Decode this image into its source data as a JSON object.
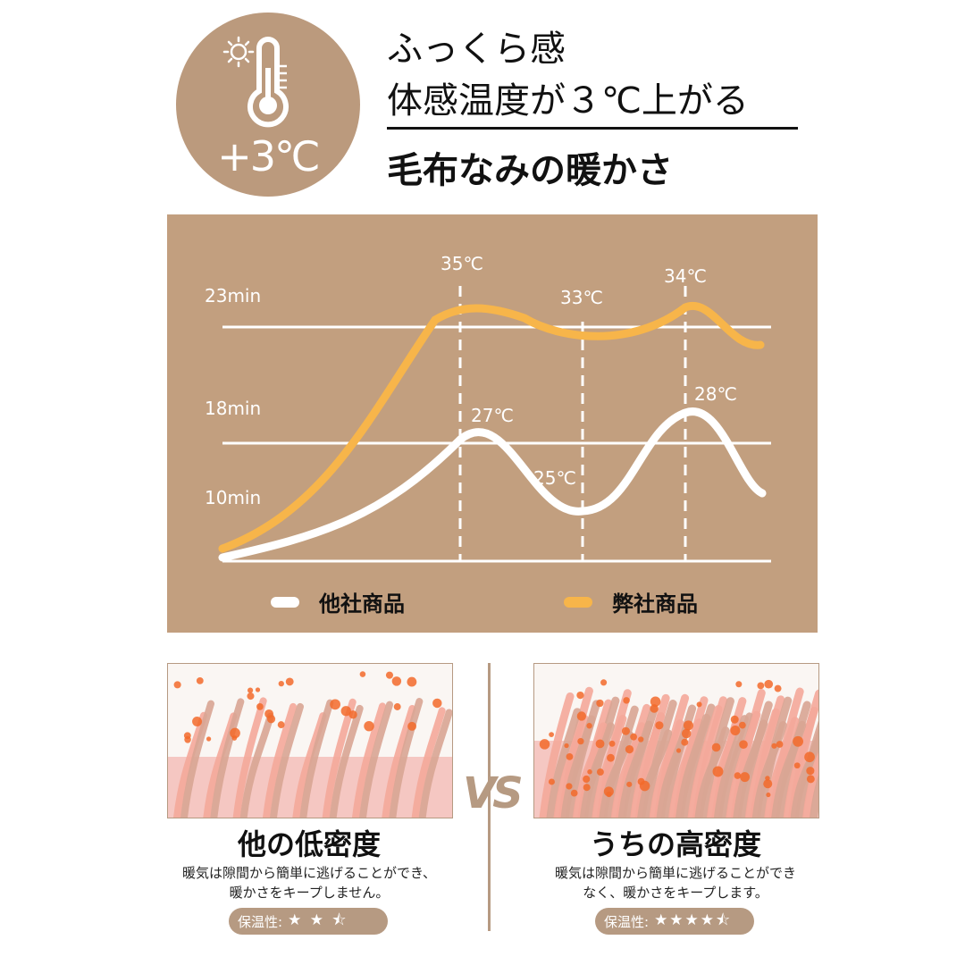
{
  "badge": {
    "text": "+3℃",
    "icon": "thermometer-sun-icon"
  },
  "header": {
    "line1": "ふっくら感",
    "line2": "体感温度が３℃上がる",
    "line3": "毛布なみの暖かさ"
  },
  "chart_data": {
    "type": "line",
    "y_labels": [
      "23min",
      "18min",
      "10min"
    ],
    "series": [
      {
        "name": "他社商品",
        "color": "#ffffff",
        "peaks": [
          "27℃",
          "25℃",
          "28℃"
        ]
      },
      {
        "name": "弊社商品",
        "color": "#f7b54a",
        "peaks": [
          "35℃",
          "33℃",
          "34℃"
        ]
      }
    ]
  },
  "legend": {
    "other": "他社商品",
    "ours": "弊社商品"
  },
  "compare": {
    "vs": "VS",
    "left": {
      "title": "他の低密度",
      "desc1": "暖気は隙間から簡単に逃げることができ、",
      "desc2": "暖かさをキープしません。",
      "rating_label": "保温性:",
      "rating": 2.5,
      "stars": "★ ★ ⯪"
    },
    "right": {
      "title": "うちの高密度",
      "desc1": "暖気は隙間から簡単に逃げることができ",
      "desc2": "なく、暖かさをキープします。",
      "rating_label": "保温性:",
      "rating": 4.5,
      "stars": "★★★★⯪"
    }
  },
  "colors": {
    "brown": "#c29f7f",
    "orange": "#f7b54a",
    "badge": "#bb9a7d",
    "dot": "#f26a2a"
  }
}
